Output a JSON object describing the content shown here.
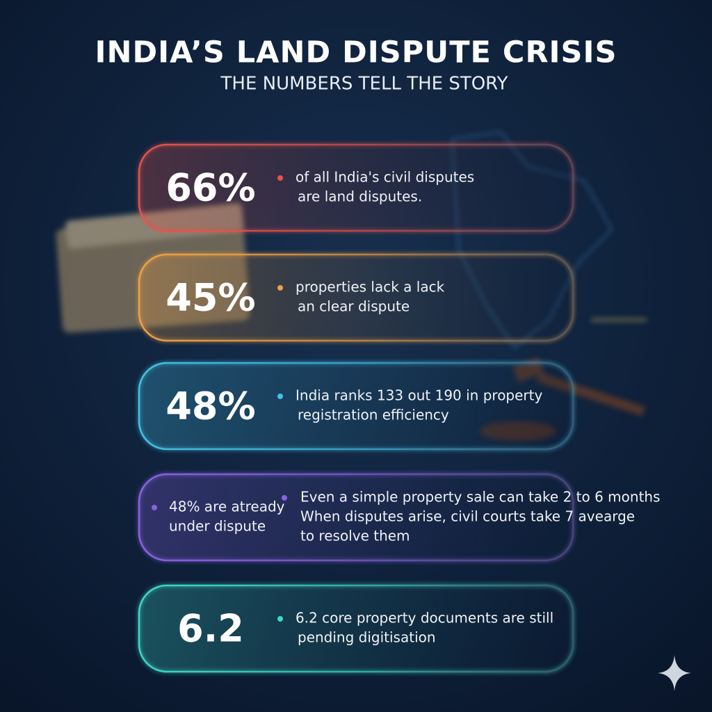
{
  "header": {
    "title": "INDIA’S LAND DISPUTE CRISIS",
    "subtitle": "THE NUMBERS TELL THE STORY"
  },
  "cards": [
    {
      "stat": "66%",
      "color": "#e5534b",
      "lines": [
        "of all India's civil disputes",
        "are land disputes."
      ]
    },
    {
      "stat": "45%",
      "color": "#f0a043",
      "lines": [
        "properties lack a lack",
        "an clear dispute"
      ]
    },
    {
      "stat": "48%",
      "color": "#43c3e6",
      "lines": [
        "India ranks 133 out 190 in property",
        "registration efficiency"
      ]
    },
    {
      "color": "#8b62e3",
      "side_lines": [
        "48% are atready",
        "under dispute"
      ],
      "lines": [
        "Even a simple property sale can take 2 to 6 months",
        "When disputes arise, civil courts take 7 avearge",
        "to resolve them"
      ]
    },
    {
      "stat": "6.2",
      "color": "#3fd9c9",
      "lines": [
        "6.2 core property documents are still",
        "pending digitisation"
      ]
    }
  ]
}
